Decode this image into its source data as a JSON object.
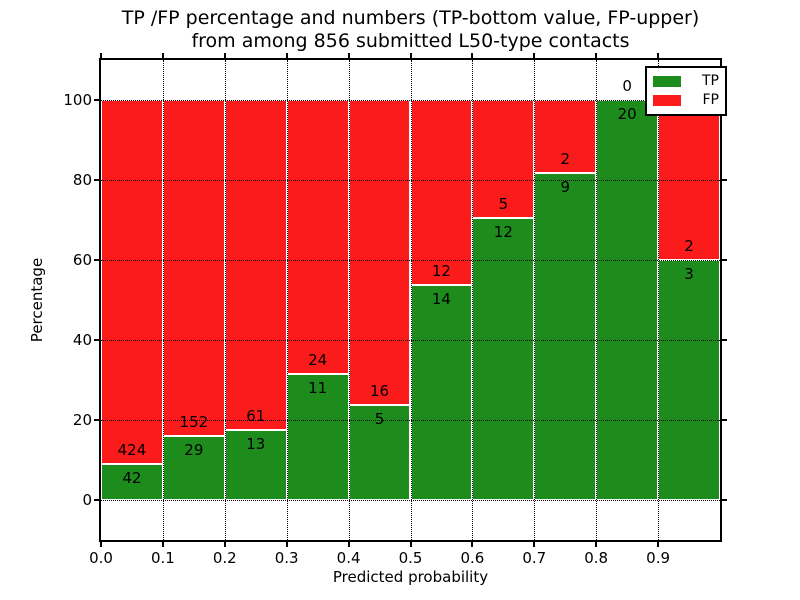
{
  "title": {
    "line1": "TP /FP percentage and numbers (TP-bottom value, FP-upper)",
    "line2": "from among 856 submitted L50-type contacts"
  },
  "axes": {
    "xlabel": "Predicted probability",
    "ylabel": "Percentage"
  },
  "legend": {
    "items": [
      {
        "label": "TP",
        "color": "#1d8c1d"
      },
      {
        "label": "FP",
        "color": "#fc1b1b"
      }
    ]
  },
  "colors": {
    "tp": "#1d8c1d",
    "fp": "#fc1b1b",
    "grid": "#000000",
    "frame": "#000000",
    "text": "#000000",
    "background": "#ffffff"
  },
  "chart_data": {
    "type": "bar",
    "stacked": true,
    "normalized": "each bin scaled to 100%",
    "title": "TP /FP percentage and numbers (TP-bottom value, FP-upper) from among 856 submitted L50-type contacts",
    "xlabel": "Predicted probability",
    "ylabel": "Percentage",
    "xlim": [
      0.0,
      1.0
    ],
    "ylim": [
      -10,
      110
    ],
    "grid": true,
    "legend_position": "upper right",
    "x_tick_labels": [
      "0.0",
      "0.1",
      "0.2",
      "0.3",
      "0.4",
      "0.5",
      "0.6",
      "0.7",
      "0.8",
      "0.9"
    ],
    "x_tick_values": [
      0.0,
      0.1,
      0.2,
      0.3,
      0.4,
      0.5,
      0.6,
      0.7,
      0.8,
      0.9
    ],
    "y_tick_values": [
      0,
      20,
      40,
      60,
      80,
      100
    ],
    "bin_edges": [
      0.0,
      0.1,
      0.2,
      0.3,
      0.4,
      0.5,
      0.6,
      0.7,
      0.8,
      0.9,
      1.0
    ],
    "series": [
      {
        "name": "TP",
        "counts": [
          42,
          29,
          13,
          11,
          5,
          14,
          12,
          9,
          20,
          3
        ]
      },
      {
        "name": "FP",
        "counts": [
          424,
          152,
          61,
          24,
          16,
          12,
          5,
          2,
          0,
          2
        ]
      }
    ],
    "tp_percent_per_bin": [
      9.01,
      16.02,
      17.57,
      31.43,
      23.81,
      53.85,
      70.59,
      81.82,
      100.0,
      60.0
    ],
    "total_submitted": 856
  }
}
